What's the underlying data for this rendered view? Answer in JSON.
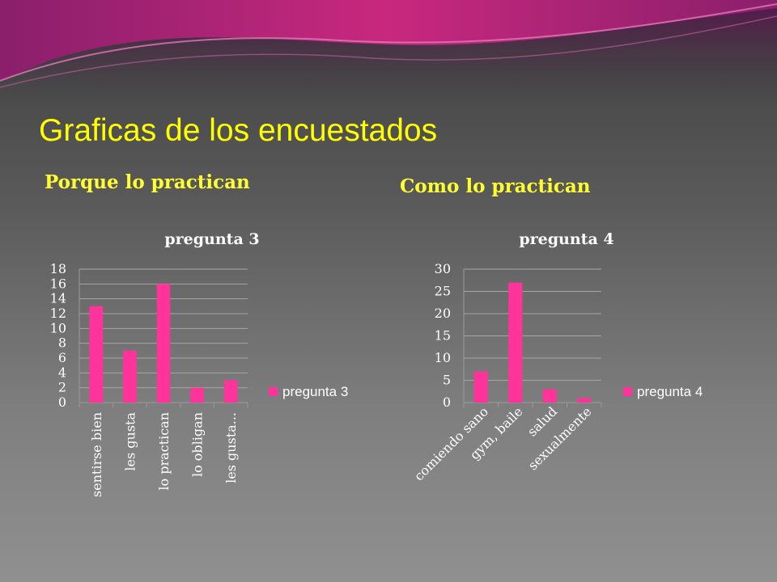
{
  "slide": {
    "title": "Graficas de los encuestados",
    "subtitle_left": "Porque lo practican",
    "subtitle_right": "Como lo practican"
  },
  "colors": {
    "bar": "#ff3399",
    "title": "#ffff00",
    "subtitle": "#ffff33"
  },
  "chart_data": [
    {
      "type": "bar",
      "title": "pregunta 3",
      "categories": [
        "sentirse bien",
        "les gusta",
        "lo practican",
        "lo obligan",
        "les gusta..."
      ],
      "series": [
        {
          "name": "pregunta 3",
          "values": [
            13,
            7,
            16,
            2,
            3
          ]
        }
      ],
      "yticks": [
        "0",
        "2",
        "4",
        "6",
        "8",
        "10",
        "12",
        "14",
        "16",
        "18"
      ],
      "ylim": [
        0,
        18
      ],
      "grid": true,
      "legend": "right"
    },
    {
      "type": "bar",
      "title": "pregunta 4",
      "categories": [
        "comiendo sano",
        "gym, baile",
        "salud",
        "sexualmente"
      ],
      "series": [
        {
          "name": "pregunta 4",
          "values": [
            7,
            27,
            3,
            1
          ]
        }
      ],
      "yticks": [
        "0",
        "5",
        "10",
        "15",
        "20",
        "25",
        "30"
      ],
      "ylim": [
        0,
        30
      ],
      "grid": true,
      "legend": "right"
    }
  ]
}
